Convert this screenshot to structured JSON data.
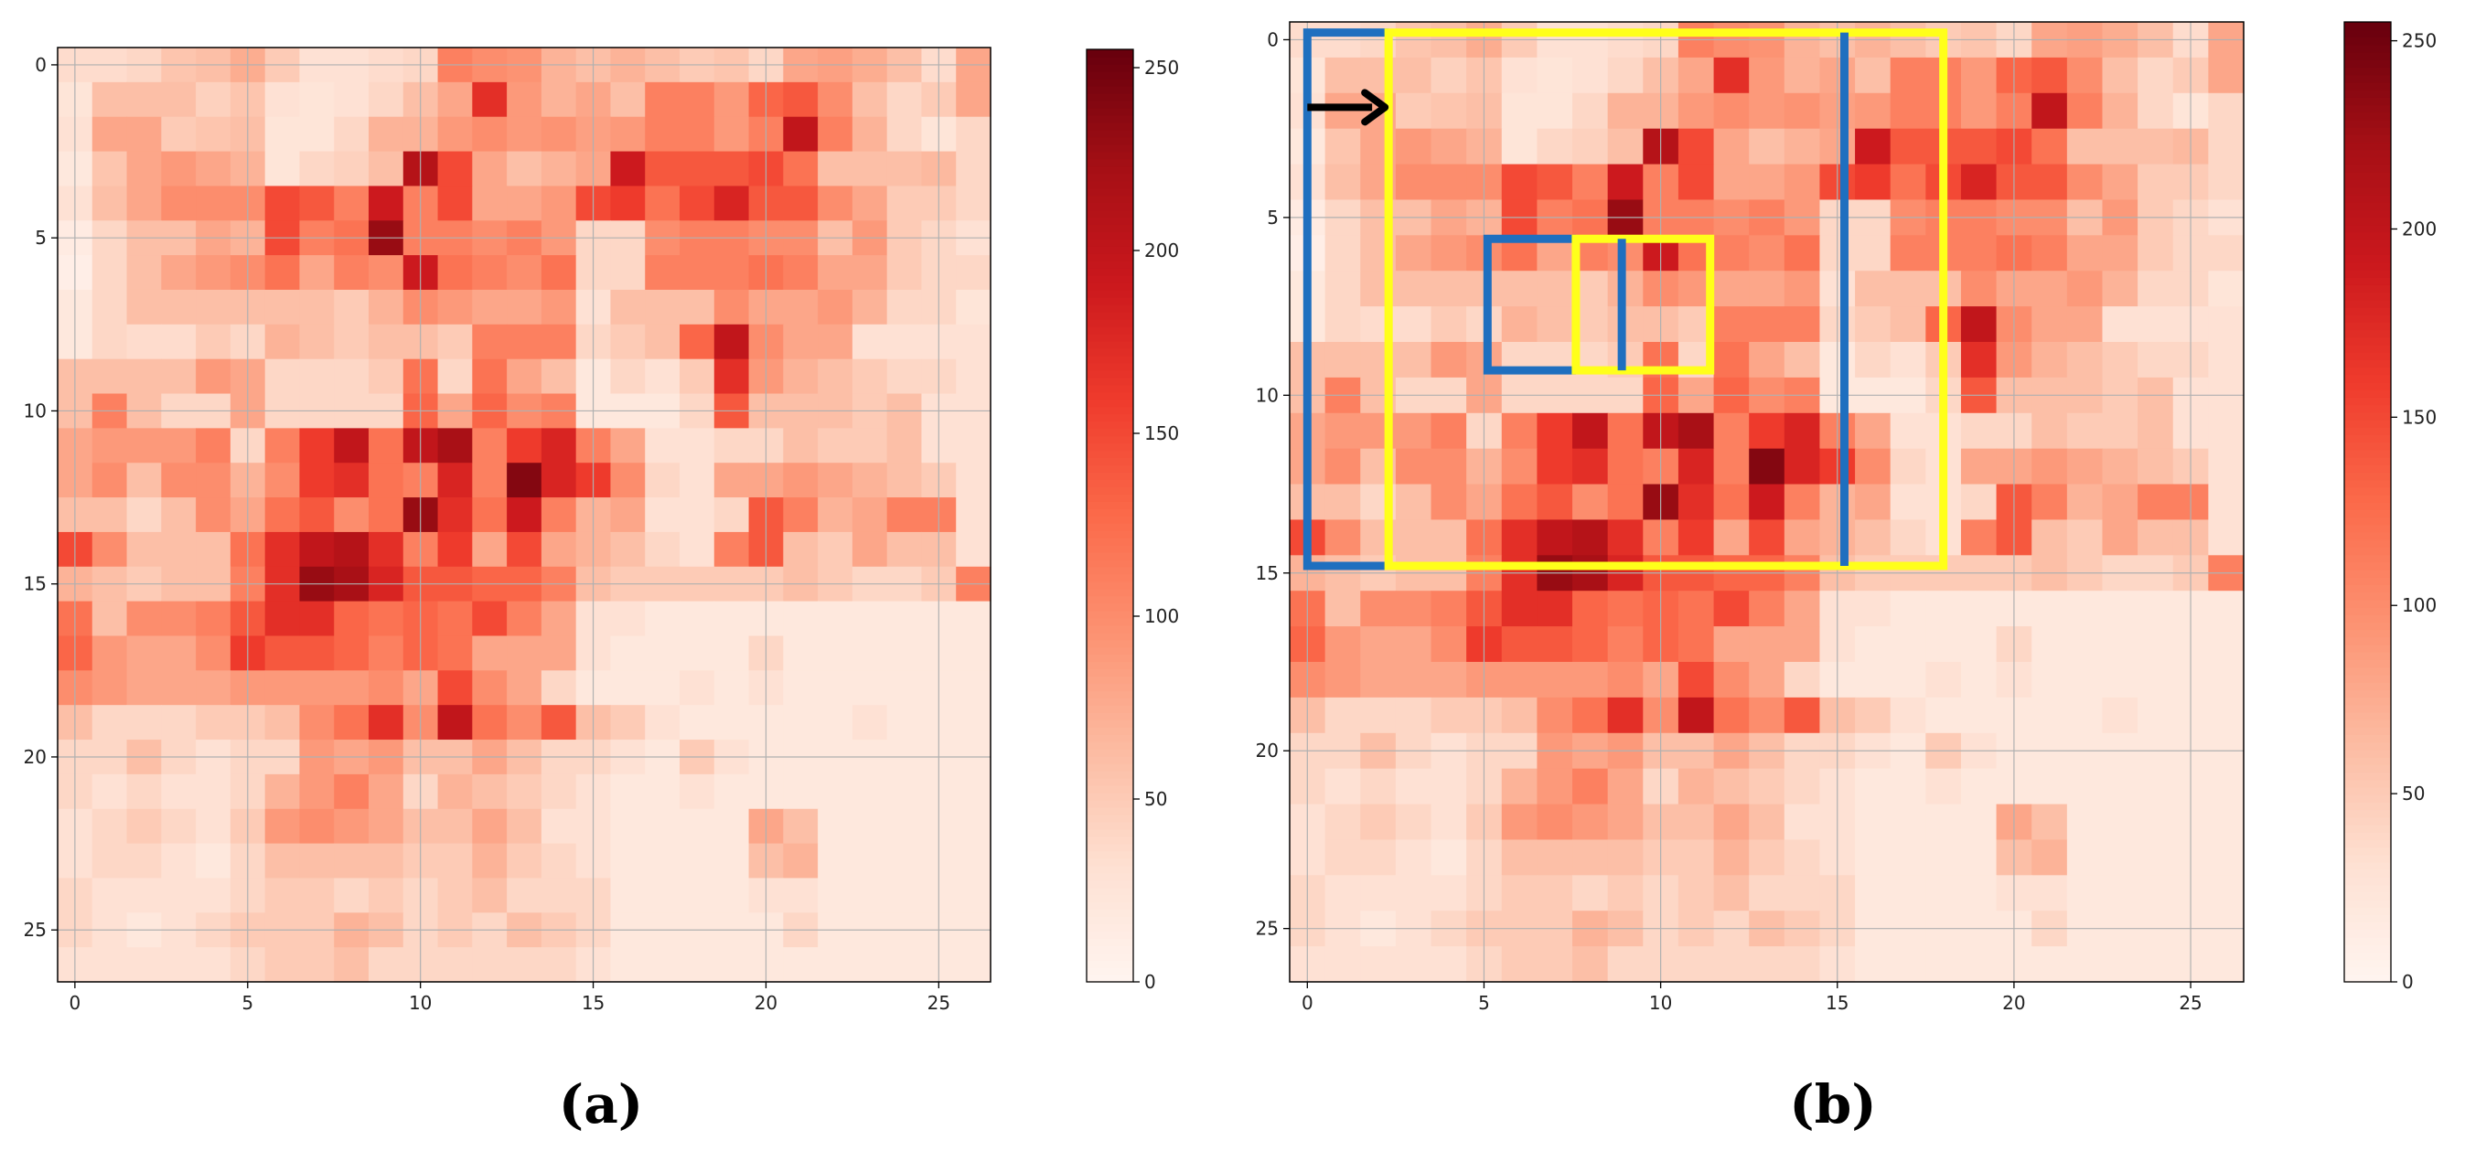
{
  "figure": {
    "panel_labels": [
      "(a)",
      "(b)"
    ]
  },
  "chart_data": [
    {
      "type": "heatmap",
      "panel": "(a)",
      "title": "",
      "xlabel": "",
      "ylabel": "",
      "grid": true,
      "colormap": "Reds",
      "colorbar": {
        "vmin": 0,
        "vmax": 255,
        "ticks": [
          0,
          50,
          100,
          150,
          200,
          250
        ],
        "tick_labels": [
          "0",
          "50",
          "100",
          "150",
          "200",
          "250"
        ]
      },
      "xlim": [
        -0.5,
        26.5
      ],
      "ylim": [
        -0.5,
        26.5
      ],
      "x_ticks": [
        0,
        5,
        10,
        15,
        20,
        25
      ],
      "x_tick_labels": [
        "0",
        "5",
        "10",
        "15",
        "20",
        "25"
      ],
      "y_ticks": [
        0,
        5,
        10,
        15,
        20,
        25
      ],
      "y_tick_labels": [
        "0",
        "5",
        "10",
        "15",
        "20",
        "25"
      ],
      "rows": 27,
      "cols": 27,
      "values_note": "approximate intensities (0-255) read from the colours; rows listed top to bottom",
      "values": [
        [
          35,
          35,
          40,
          55,
          60,
          75,
          50,
          30,
          30,
          35,
          40,
          110,
          100,
          95,
          70,
          60,
          70,
          60,
          50,
          55,
          40,
          80,
          85,
          75,
          60,
          35,
          80
        ],
        [
          25,
          60,
          60,
          60,
          45,
          55,
          30,
          25,
          30,
          40,
          60,
          80,
          170,
          90,
          70,
          80,
          60,
          110,
          110,
          90,
          130,
          140,
          100,
          60,
          40,
          50,
          80
        ],
        [
          30,
          80,
          80,
          50,
          55,
          60,
          25,
          25,
          40,
          70,
          70,
          90,
          100,
          90,
          95,
          85,
          90,
          110,
          110,
          90,
          110,
          200,
          110,
          70,
          40,
          25,
          40
        ],
        [
          20,
          55,
          80,
          90,
          80,
          70,
          25,
          40,
          45,
          60,
          210,
          150,
          80,
          60,
          70,
          80,
          190,
          140,
          140,
          140,
          150,
          120,
          60,
          60,
          60,
          65,
          40
        ],
        [
          30,
          60,
          80,
          100,
          100,
          100,
          150,
          140,
          110,
          190,
          110,
          150,
          80,
          80,
          90,
          150,
          160,
          120,
          150,
          180,
          140,
          140,
          100,
          80,
          50,
          50,
          40
        ],
        [
          15,
          40,
          60,
          60,
          80,
          70,
          150,
          110,
          120,
          230,
          110,
          110,
          100,
          110,
          90,
          40,
          40,
          100,
          110,
          110,
          100,
          100,
          60,
          90,
          50,
          40,
          30
        ],
        [
          10,
          40,
          60,
          80,
          90,
          100,
          120,
          80,
          110,
          100,
          190,
          120,
          110,
          100,
          120,
          40,
          40,
          110,
          110,
          110,
          120,
          110,
          80,
          80,
          50,
          40,
          40
        ],
        [
          20,
          40,
          60,
          60,
          60,
          60,
          60,
          60,
          50,
          70,
          100,
          90,
          80,
          80,
          90,
          30,
          60,
          60,
          60,
          100,
          80,
          80,
          90,
          70,
          40,
          40,
          25
        ],
        [
          20,
          40,
          35,
          35,
          50,
          40,
          70,
          60,
          50,
          60,
          60,
          50,
          110,
          110,
          110,
          40,
          50,
          60,
          130,
          200,
          100,
          80,
          80,
          30,
          30,
          30,
          30
        ],
        [
          60,
          60,
          60,
          60,
          90,
          80,
          40,
          40,
          40,
          50,
          120,
          40,
          120,
          80,
          60,
          20,
          40,
          30,
          50,
          170,
          90,
          70,
          60,
          50,
          40,
          40,
          30
        ],
        [
          60,
          110,
          60,
          40,
          40,
          80,
          40,
          40,
          40,
          40,
          130,
          80,
          130,
          100,
          110,
          20,
          20,
          20,
          40,
          140,
          60,
          60,
          60,
          50,
          60,
          30,
          30
        ],
        [
          80,
          90,
          90,
          90,
          110,
          40,
          110,
          160,
          200,
          120,
          200,
          220,
          110,
          160,
          180,
          110,
          80,
          30,
          30,
          40,
          40,
          60,
          50,
          50,
          60,
          30,
          30
        ],
        [
          80,
          100,
          60,
          100,
          100,
          70,
          100,
          160,
          170,
          120,
          110,
          180,
          110,
          240,
          180,
          160,
          100,
          40,
          30,
          80,
          80,
          90,
          80,
          70,
          60,
          50,
          30
        ],
        [
          60,
          60,
          40,
          60,
          100,
          80,
          120,
          140,
          100,
          120,
          230,
          170,
          120,
          190,
          110,
          70,
          80,
          30,
          30,
          40,
          140,
          110,
          70,
          80,
          110,
          110,
          30
        ],
        [
          150,
          100,
          60,
          60,
          60,
          120,
          170,
          200,
          210,
          170,
          110,
          160,
          80,
          150,
          80,
          70,
          60,
          40,
          30,
          110,
          140,
          60,
          50,
          80,
          60,
          60,
          30
        ],
        [
          70,
          60,
          50,
          60,
          60,
          110,
          170,
          230,
          220,
          180,
          140,
          140,
          130,
          130,
          110,
          60,
          50,
          50,
          50,
          50,
          50,
          60,
          50,
          40,
          40,
          50,
          110
        ],
        [
          120,
          60,
          100,
          100,
          110,
          140,
          170,
          170,
          130,
          120,
          130,
          120,
          150,
          110,
          80,
          30,
          30,
          20,
          20,
          20,
          20,
          20,
          20,
          20,
          20,
          20,
          20
        ],
        [
          130,
          90,
          80,
          80,
          100,
          160,
          140,
          140,
          130,
          110,
          130,
          120,
          80,
          80,
          80,
          30,
          20,
          20,
          20,
          20,
          40,
          20,
          20,
          20,
          20,
          20,
          20
        ],
        [
          100,
          90,
          80,
          80,
          80,
          90,
          90,
          90,
          90,
          100,
          80,
          150,
          100,
          80,
          40,
          20,
          20,
          20,
          30,
          20,
          30,
          20,
          20,
          20,
          20,
          20,
          20
        ],
        [
          60,
          40,
          40,
          40,
          50,
          50,
          60,
          100,
          120,
          170,
          100,
          200,
          120,
          100,
          140,
          60,
          50,
          30,
          20,
          20,
          20,
          20,
          20,
          30,
          20,
          20,
          20
        ],
        [
          40,
          40,
          60,
          40,
          30,
          40,
          40,
          90,
          80,
          90,
          60,
          60,
          80,
          60,
          40,
          40,
          30,
          20,
          50,
          30,
          20,
          20,
          20,
          20,
          20,
          20,
          20
        ],
        [
          40,
          30,
          40,
          30,
          30,
          40,
          70,
          90,
          110,
          80,
          40,
          70,
          60,
          50,
          40,
          30,
          20,
          20,
          30,
          20,
          20,
          20,
          20,
          20,
          20,
          20,
          20
        ],
        [
          30,
          40,
          50,
          40,
          30,
          50,
          90,
          100,
          90,
          80,
          60,
          60,
          80,
          60,
          30,
          30,
          20,
          20,
          20,
          20,
          80,
          60,
          20,
          20,
          20,
          20,
          20
        ],
        [
          30,
          40,
          40,
          30,
          20,
          40,
          60,
          60,
          60,
          60,
          50,
          50,
          70,
          50,
          40,
          30,
          20,
          20,
          20,
          20,
          60,
          70,
          20,
          20,
          20,
          20,
          20
        ],
        [
          40,
          30,
          30,
          30,
          30,
          40,
          50,
          50,
          40,
          50,
          40,
          50,
          60,
          40,
          40,
          40,
          20,
          20,
          20,
          20,
          30,
          30,
          20,
          20,
          20,
          20,
          20
        ],
        [
          40,
          30,
          20,
          30,
          40,
          50,
          50,
          50,
          70,
          60,
          40,
          50,
          40,
          60,
          50,
          40,
          20,
          20,
          20,
          20,
          20,
          40,
          20,
          20,
          20,
          20,
          20
        ],
        [
          30,
          30,
          30,
          30,
          30,
          40,
          50,
          50,
          60,
          40,
          40,
          40,
          40,
          40,
          40,
          30,
          20,
          20,
          20,
          20,
          20,
          20,
          20,
          20,
          20,
          20,
          20
        ]
      ]
    },
    {
      "type": "heatmap",
      "panel": "(b)",
      "title": "",
      "xlabel": "",
      "ylabel": "",
      "grid": true,
      "colormap": "Reds",
      "colorbar": {
        "vmin": 0,
        "vmax": 255,
        "ticks": [
          0,
          50,
          100,
          150,
          200,
          250
        ],
        "tick_labels": [
          "0",
          "50",
          "100",
          "150",
          "200",
          "250"
        ]
      },
      "xlim": [
        -0.5,
        26.5
      ],
      "ylim": [
        -0.5,
        26.5
      ],
      "x_ticks": [
        0,
        5,
        10,
        15,
        20,
        25
      ],
      "x_tick_labels": [
        "0",
        "5",
        "10",
        "15",
        "20",
        "25"
      ],
      "y_ticks": [
        0,
        5,
        10,
        15,
        20,
        25
      ],
      "y_tick_labels": [
        "0",
        "5",
        "10",
        "15",
        "20",
        "25"
      ],
      "values_source": "same matrix as panel (a)",
      "annotations": [
        {
          "type": "rectangle",
          "color": "#1f6fbf",
          "x0": 0.0,
          "x1": 2.3,
          "y0": -0.2,
          "y1": 14.8,
          "open_side": "right"
        },
        {
          "type": "rectangle",
          "color": "#ffff1a",
          "x0": 2.3,
          "x1": 18.0,
          "y0": -0.2,
          "y1": 14.8,
          "open_side": "none"
        },
        {
          "type": "vline",
          "color": "#1f6fbf",
          "x": 15.2,
          "y0": -0.2,
          "y1": 14.8
        },
        {
          "type": "rectangle",
          "color": "#1f6fbf",
          "x0": 5.1,
          "x1": 7.6,
          "y0": 5.6,
          "y1": 9.3,
          "open_side": "right"
        },
        {
          "type": "rectangle",
          "color": "#ffff1a",
          "x0": 7.6,
          "x1": 11.4,
          "y0": 5.6,
          "y1": 9.3,
          "open_side": "none"
        },
        {
          "type": "vline",
          "color": "#1f6fbf",
          "x": 8.9,
          "y0": 5.6,
          "y1": 9.3
        },
        {
          "type": "arrow",
          "color": "#000000",
          "from": [
            0.0,
            1.9
          ],
          "to": [
            2.3,
            1.9
          ]
        }
      ]
    }
  ]
}
